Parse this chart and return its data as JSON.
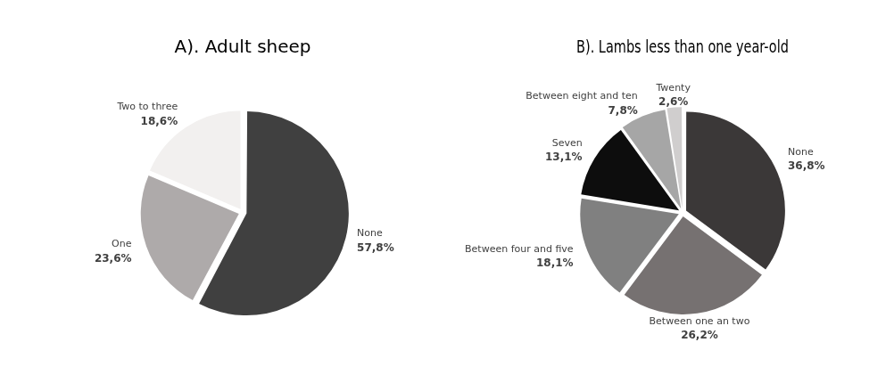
{
  "chart_data": [
    {
      "type": "pie",
      "title": "A). Adult sheep",
      "categories": [
        "None",
        "One",
        "Two to three"
      ],
      "values": [
        57.8,
        23.6,
        18.6
      ],
      "value_labels": [
        "57,8%",
        "23,6%",
        "18,6%"
      ],
      "colors": [
        "#404040",
        "#aeaaaa",
        "#f2f0ef"
      ],
      "legend": false
    },
    {
      "type": "pie",
      "title": "B). Lambs less than one year-old",
      "categories": [
        "None",
        "Between one an two",
        "Between four and five",
        "Seven",
        "Between eight and ten",
        "Twenty"
      ],
      "values": [
        36.8,
        26.2,
        18.1,
        13.1,
        7.8,
        2.6
      ],
      "value_labels": [
        "36,8%",
        "26,2%",
        "18,1%",
        "13,1%",
        "7,8%",
        "2,6%"
      ],
      "colors": [
        "#3b3838",
        "#767171",
        "#808080",
        "#0d0d0d",
        "#a6a6a6",
        "#d0cece"
      ],
      "legend": false
    }
  ]
}
